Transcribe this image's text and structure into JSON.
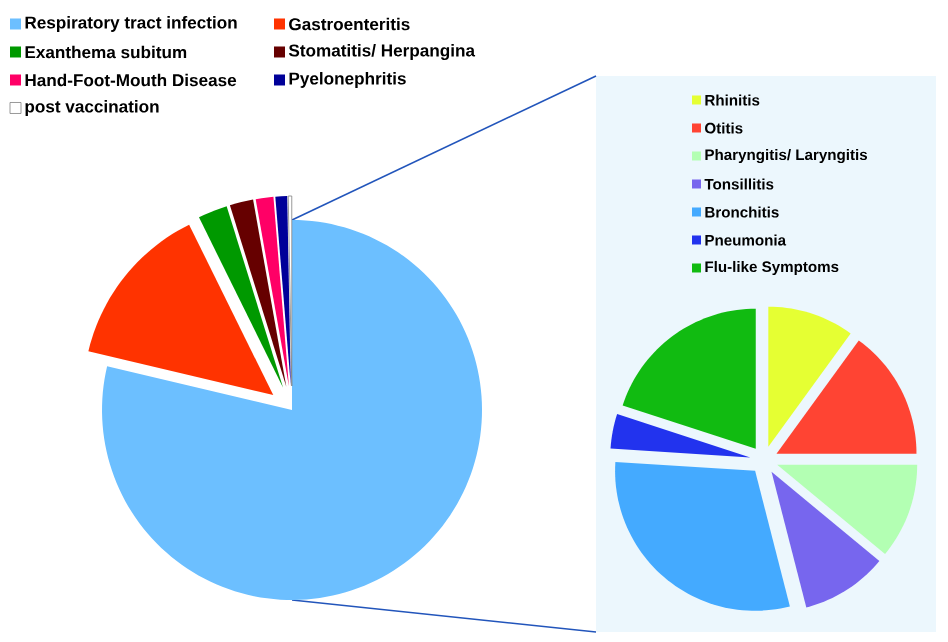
{
  "chart_data": [
    {
      "type": "pie",
      "categories": [
        "Respiratory tract infection",
        "Gastroenteritis",
        "Exanthema subitum",
        "Stomatitis/ Herpangina",
        "Hand-Foot-Mouth Disease",
        "Pyelonephritis",
        "post vaccination"
      ],
      "values": [
        78.7,
        14.0,
        2.5,
        2.0,
        1.5,
        1.0,
        0.3
      ],
      "colors": [
        "#6cbfff",
        "#ff3300",
        "#009900",
        "#660000",
        "#ff0066",
        "#000099",
        "#ffffff"
      ],
      "legend": "top left"
    },
    {
      "type": "pie",
      "categories": [
        "Rhinitis",
        "Otitis",
        "Pharyngitis/ Laryngitis",
        "Tonsillitis",
        "Bronchitis",
        "Pneumonia",
        "Flu-like Symptoms"
      ],
      "values": [
        10,
        15,
        11,
        10,
        30,
        4,
        20
      ],
      "colors": [
        "#e5ff33",
        "#ff4433",
        "#b3ffb3",
        "#7766ee",
        "#44aaff",
        "#2233ee",
        "#11bb11"
      ],
      "legend": "top"
    }
  ]
}
